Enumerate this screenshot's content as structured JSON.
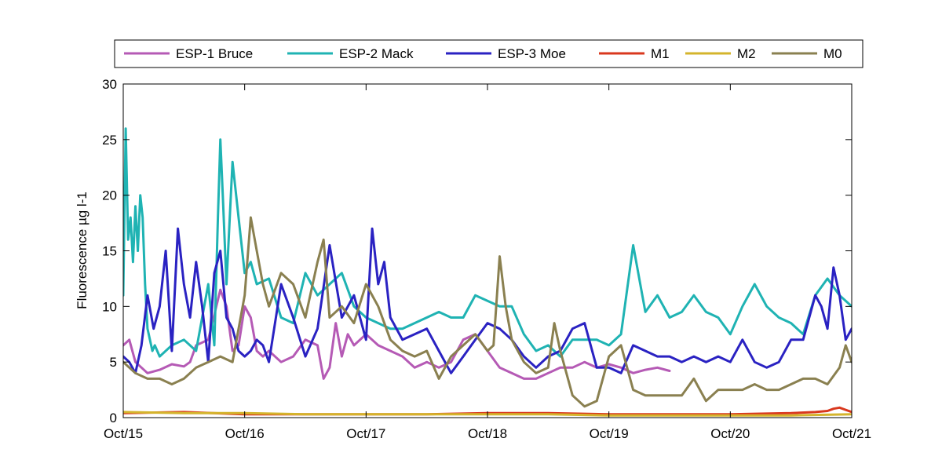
{
  "chart_data": {
    "type": "line",
    "title": "",
    "xlabel": "",
    "ylabel": "Fluorescence µg l-1",
    "xlim": [
      0,
      6
    ],
    "ylim": [
      0,
      30
    ],
    "x_ticks": [
      0,
      1,
      2,
      3,
      4,
      5,
      6
    ],
    "x_tick_labels": [
      "Oct/15",
      "Oct/16",
      "Oct/17",
      "Oct/18",
      "Oct/19",
      "Oct/20",
      "Oct/21"
    ],
    "y_ticks": [
      0,
      5,
      10,
      15,
      20,
      25,
      30
    ],
    "y_tick_labels": [
      "0",
      "5",
      "10",
      "15",
      "20",
      "25",
      "30"
    ],
    "grid": false,
    "legend_position": "top, outside",
    "series": [
      {
        "name": "ESP-1 Bruce",
        "color": "#b55ab5",
        "x": [
          0,
          0.05,
          0.1,
          0.2,
          0.3,
          0.4,
          0.5,
          0.55,
          0.6,
          0.7,
          0.8,
          0.85,
          0.9,
          0.95,
          1.0,
          1.05,
          1.1,
          1.15,
          1.2,
          1.3,
          1.4,
          1.5,
          1.6,
          1.65,
          1.7,
          1.75,
          1.8,
          1.85,
          1.9,
          2.0,
          2.1,
          2.2,
          2.3,
          2.4,
          2.5,
          2.6,
          2.7,
          2.8,
          2.9,
          3.0,
          3.1,
          3.2,
          3.3,
          3.4,
          3.5,
          3.6,
          3.7,
          3.8,
          3.9,
          4.0,
          4.1,
          4.2,
          4.3,
          4.4,
          4.5
        ],
        "values": [
          6.5,
          7.0,
          5.0,
          4.0,
          4.3,
          4.8,
          4.6,
          5.0,
          6.5,
          7.0,
          11.5,
          10.0,
          6.0,
          6.5,
          10.0,
          9.0,
          6.0,
          5.5,
          6.0,
          5.0,
          5.5,
          7.0,
          6.5,
          3.5,
          4.5,
          8.5,
          5.5,
          7.5,
          6.5,
          7.5,
          6.5,
          6.0,
          5.5,
          4.5,
          5.0,
          4.5,
          5.0,
          7.0,
          7.5,
          6.0,
          4.5,
          4.0,
          3.5,
          3.5,
          4.0,
          4.5,
          4.5,
          5.0,
          4.5,
          4.8,
          4.5,
          4.0,
          4.3,
          4.5,
          4.2
        ]
      },
      {
        "name": "ESP-2 Mack",
        "color": "#1fb3b3",
        "x": [
          0,
          0.02,
          0.04,
          0.06,
          0.08,
          0.1,
          0.12,
          0.14,
          0.16,
          0.18,
          0.2,
          0.22,
          0.24,
          0.26,
          0.28,
          0.3,
          0.35,
          0.4,
          0.5,
          0.6,
          0.7,
          0.75,
          0.78,
          0.8,
          0.82,
          0.85,
          0.9,
          0.95,
          1.0,
          1.05,
          1.1,
          1.2,
          1.3,
          1.4,
          1.5,
          1.6,
          1.7,
          1.8,
          1.9,
          2.0,
          2.1,
          2.2,
          2.3,
          2.4,
          2.5,
          2.6,
          2.7,
          2.8,
          2.9,
          3.0,
          3.1,
          3.2,
          3.3,
          3.4,
          3.5,
          3.6,
          3.7,
          3.8,
          3.9,
          4.0,
          4.1,
          4.2,
          4.3,
          4.4,
          4.5,
          4.6,
          4.7,
          4.8,
          4.9,
          5.0,
          5.1,
          5.2,
          5.3,
          5.4,
          5.5,
          5.6,
          5.7,
          5.8,
          5.9,
          6.0
        ],
        "values": [
          11.0,
          26.0,
          16.0,
          18.0,
          14.0,
          19.0,
          15.0,
          20.0,
          18.0,
          12.0,
          8.0,
          7.0,
          6.0,
          6.5,
          6.0,
          5.5,
          6.0,
          6.5,
          7.0,
          6.0,
          12.0,
          6.5,
          18.0,
          25.0,
          20.0,
          12.0,
          23.0,
          18.0,
          13.0,
          14.0,
          12.0,
          12.5,
          9.0,
          8.5,
          13.0,
          11.0,
          12.0,
          13.0,
          10.0,
          9.0,
          8.5,
          8.0,
          8.0,
          8.5,
          9.0,
          9.5,
          9.0,
          9.0,
          11.0,
          10.5,
          10.0,
          10.0,
          7.5,
          6.0,
          6.5,
          5.5,
          7.0,
          7.0,
          7.0,
          6.5,
          7.5,
          15.5,
          9.5,
          11.0,
          9.0,
          9.5,
          11.0,
          9.5,
          9.0,
          7.5,
          10.0,
          12.0,
          10.0,
          9.0,
          8.5,
          7.5,
          11.0,
          12.5,
          11.0,
          10.0
        ]
      },
      {
        "name": "ESP-3 Moe",
        "color": "#2a22c2",
        "x": [
          0,
          0.05,
          0.1,
          0.15,
          0.2,
          0.25,
          0.3,
          0.35,
          0.4,
          0.45,
          0.5,
          0.55,
          0.6,
          0.65,
          0.7,
          0.75,
          0.8,
          0.85,
          0.9,
          0.95,
          1.0,
          1.05,
          1.1,
          1.15,
          1.2,
          1.3,
          1.4,
          1.5,
          1.6,
          1.7,
          1.8,
          1.9,
          2.0,
          2.05,
          2.1,
          2.15,
          2.2,
          2.3,
          2.4,
          2.5,
          2.6,
          2.7,
          2.8,
          2.9,
          3.0,
          3.1,
          3.2,
          3.3,
          3.4,
          3.5,
          3.6,
          3.7,
          3.8,
          3.9,
          4.0,
          4.1,
          4.2,
          4.3,
          4.4,
          4.5,
          4.6,
          4.7,
          4.8,
          4.9,
          5.0,
          5.1,
          5.2,
          5.3,
          5.4,
          5.5,
          5.6,
          5.7,
          5.75,
          5.8,
          5.85,
          5.9,
          5.95,
          6.0
        ],
        "values": [
          5.5,
          5.0,
          4.0,
          6.5,
          11.0,
          8.0,
          10.0,
          15.0,
          6.0,
          17.0,
          12.0,
          9.0,
          14.0,
          10.0,
          5.0,
          13.0,
          15.0,
          9.0,
          8.0,
          6.0,
          5.5,
          6.0,
          7.0,
          6.5,
          5.0,
          12.0,
          9.0,
          5.5,
          8.0,
          15.5,
          9.0,
          11.0,
          7.0,
          17.0,
          12.0,
          14.0,
          9.0,
          7.0,
          7.5,
          8.0,
          6.0,
          4.0,
          5.5,
          7.0,
          8.5,
          8.0,
          7.0,
          5.5,
          4.5,
          5.5,
          6.0,
          8.0,
          8.5,
          4.5,
          4.5,
          4.0,
          6.5,
          6.0,
          5.5,
          5.5,
          5.0,
          5.5,
          5.0,
          5.5,
          5.0,
          7.0,
          5.0,
          4.5,
          5.0,
          7.0,
          7.0,
          11.0,
          10.0,
          8.0,
          13.5,
          11.0,
          7.0,
          8.0
        ]
      },
      {
        "name": "M1",
        "color": "#d9381e",
        "x": [
          0,
          0.5,
          1.0,
          1.5,
          2.0,
          2.5,
          3.0,
          3.5,
          4.0,
          4.5,
          5.0,
          5.5,
          5.7,
          5.8,
          5.85,
          5.9,
          5.95,
          6.0
        ],
        "values": [
          0.4,
          0.5,
          0.3,
          0.3,
          0.3,
          0.3,
          0.4,
          0.4,
          0.3,
          0.3,
          0.3,
          0.4,
          0.5,
          0.6,
          0.8,
          0.9,
          0.7,
          0.5
        ]
      },
      {
        "name": "M2",
        "color": "#d4b42c",
        "x": [
          0,
          0.5,
          1.0,
          1.5,
          2.0,
          2.5,
          3.0,
          3.5,
          4.0,
          4.5,
          5.0,
          5.5,
          6.0
        ],
        "values": [
          0.5,
          0.4,
          0.4,
          0.3,
          0.3,
          0.3,
          0.3,
          0.3,
          0.2,
          0.2,
          0.2,
          0.2,
          0.3
        ]
      },
      {
        "name": "M0",
        "color": "#8a8050",
        "x": [
          0,
          0.1,
          0.2,
          0.3,
          0.4,
          0.5,
          0.6,
          0.7,
          0.8,
          0.9,
          1.0,
          1.05,
          1.1,
          1.15,
          1.2,
          1.3,
          1.4,
          1.5,
          1.6,
          1.65,
          1.7,
          1.8,
          1.9,
          2.0,
          2.1,
          2.2,
          2.3,
          2.4,
          2.5,
          2.6,
          2.7,
          2.8,
          2.9,
          3.0,
          3.05,
          3.1,
          3.15,
          3.2,
          3.3,
          3.4,
          3.5,
          3.55,
          3.6,
          3.7,
          3.8,
          3.9,
          4.0,
          4.1,
          4.2,
          4.3,
          4.4,
          4.5,
          4.6,
          4.7,
          4.8,
          4.9,
          5.0,
          5.1,
          5.2,
          5.3,
          5.4,
          5.5,
          5.6,
          5.7,
          5.8,
          5.9,
          5.95,
          6.0
        ],
        "values": [
          5.0,
          4.0,
          3.5,
          3.5,
          3.0,
          3.5,
          4.5,
          5.0,
          5.5,
          5.0,
          11.0,
          18.0,
          15.0,
          12.0,
          10.0,
          13.0,
          12.0,
          9.0,
          14.0,
          16.0,
          9.0,
          10.0,
          8.5,
          12.0,
          10.0,
          7.0,
          6.0,
          5.5,
          6.0,
          3.5,
          5.5,
          6.5,
          7.5,
          6.0,
          6.5,
          14.5,
          10.0,
          7.0,
          5.0,
          4.0,
          4.5,
          8.5,
          6.0,
          2.0,
          1.0,
          1.5,
          5.5,
          6.5,
          2.5,
          2.0,
          2.0,
          2.0,
          2.0,
          3.5,
          1.5,
          2.5,
          2.5,
          2.5,
          3.0,
          2.5,
          2.5,
          3.0,
          3.5,
          3.5,
          3.0,
          4.5,
          6.5,
          5.0
        ]
      }
    ]
  }
}
